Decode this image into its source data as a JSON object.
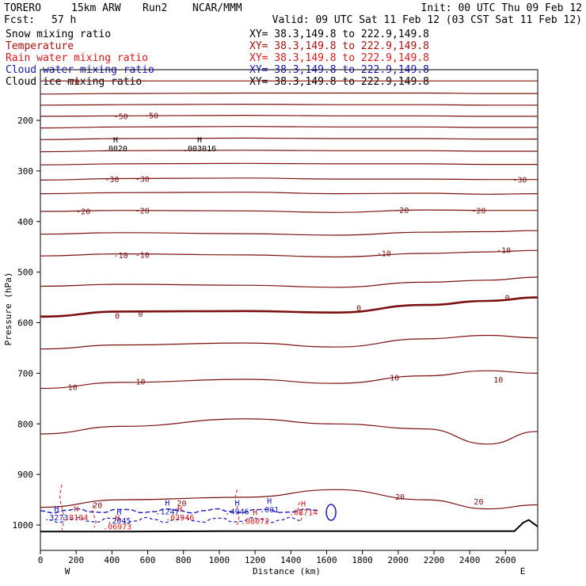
{
  "header": {
    "model": "TORERO",
    "grid": "15km ARW",
    "run": "Run2",
    "org": "NCAR/MMM",
    "init": "Init: 00 UTC Thu 09 Feb 12",
    "fcst": "Fcst:",
    "fcst_hours": "57 h",
    "valid": "Valid: 09 UTC Sat 11 Feb 12 (03 CST Sat 11 Feb 12)"
  },
  "legend": [
    {
      "name": "Snow mixing ratio",
      "color": "#000000",
      "xy": "XY=  38.3,149.8 to 222.9,149.8"
    },
    {
      "name": "Temperature",
      "color": "#b01010",
      "xy": "XY=  38.3,149.8 to 222.9,149.8"
    },
    {
      "name": "Rain water mixing ratio",
      "color": "#e01818",
      "xy": "XY=  38.3,149.8 to 222.9,149.8"
    },
    {
      "name": "Cloud water mixing ratio",
      "color": "#1818c0",
      "xy": "XY=  38.3,149.8 to 222.9,149.8"
    },
    {
      "name": "Cloud ice mixing ratio",
      "color": "#000000",
      "xy": "XY=  38.3,149.8 to 222.9,149.8"
    }
  ],
  "colors": {
    "temperature": "#7a1010",
    "freezing": "#7a1010",
    "rain": "#e01818",
    "cloudwater": "#1818c0",
    "ice": "#000000",
    "terrain": "#000000"
  },
  "chart_data": {
    "type": "cross-section",
    "xlabel": "Distance (km)",
    "ylabel": "Pressure (hPa)",
    "xlim": [
      0,
      2780
    ],
    "ylim": [
      1050,
      100
    ],
    "x_ticks": [
      0,
      200,
      400,
      600,
      800,
      1000,
      1200,
      1400,
      1600,
      1800,
      2000,
      2200,
      2400,
      2600
    ],
    "x_tick_labels": [
      "0",
      "200",
      "400",
      "600",
      "800",
      "1000",
      "1200",
      "1400",
      "1600",
      "1800",
      "2000",
      "2200",
      "2400",
      "2600"
    ],
    "y_ticks": [
      200,
      300,
      400,
      500,
      600,
      700,
      800,
      900,
      1000
    ],
    "y_tick_labels": [
      "200",
      "300",
      "400",
      "500",
      "600",
      "700",
      "800",
      "900",
      "1000"
    ],
    "x_end_labels": {
      "left": "W",
      "right": "E"
    },
    "temperature_isotherms_C": [
      {
        "label": "-70",
        "p": [
          122,
          122,
          122,
          122,
          122,
          122,
          122
        ]
      },
      {
        "label": "",
        "p": [
          148,
          147,
          146,
          146,
          146,
          147,
          147
        ]
      },
      {
        "label": "",
        "p": [
          170,
          169,
          168,
          169,
          169,
          170,
          170
        ]
      },
      {
        "label": "-50",
        "p": [
          192,
          191,
          190,
          191,
          191,
          192,
          192
        ]
      },
      {
        "label": "",
        "p": [
          215,
          213,
          212,
          213,
          213,
          214,
          214
        ]
      },
      {
        "label": "",
        "p": [
          238,
          236,
          235,
          236,
          236,
          237,
          237
        ]
      },
      {
        "label": "",
        "p": [
          262,
          260,
          259,
          260,
          260,
          261,
          261
        ]
      },
      {
        "label": "",
        "p": [
          288,
          286,
          285,
          286,
          286,
          287,
          287
        ]
      },
      {
        "label": "-30",
        "p": [
          318,
          315,
          314,
          316,
          316,
          317,
          317
        ]
      },
      {
        "label": "",
        "p": [
          345,
          343,
          342,
          345,
          344,
          346,
          345
        ]
      },
      {
        "label": "-20",
        "p": [
          380,
          378,
          379,
          382,
          377,
          378,
          378
        ]
      },
      {
        "label": "",
        "p": [
          425,
          422,
          424,
          427,
          421,
          420,
          418
        ]
      },
      {
        "label": "-10",
        "p": [
          468,
          464,
          466,
          470,
          463,
          460,
          457
        ]
      },
      {
        "label": "",
        "p": [
          528,
          524,
          526,
          530,
          520,
          516,
          510
        ]
      },
      {
        "label": "0",
        "p": [
          588,
          578,
          577,
          580,
          565,
          557,
          550
        ]
      },
      {
        "label": "",
        "p": [
          652,
          644,
          640,
          648,
          632,
          625,
          630
        ]
      },
      {
        "label": "10",
        "p": [
          730,
          718,
          712,
          720,
          705,
          695,
          700
        ]
      },
      {
        "label": "",
        "p": [
          820,
          805,
          790,
          800,
          810,
          840,
          815
        ]
      },
      {
        "label": "20",
        "p": [
          965,
          950,
          945,
          930,
          950,
          968,
          960
        ]
      }
    ],
    "isotherm_x_nodes": [
      0,
      450,
      1150,
      1650,
      2150,
      2500,
      2780
    ],
    "contour_labels": [
      {
        "text": "-70",
        "x": 180,
        "p": 123
      },
      {
        "text": "-50",
        "x": 450,
        "p": 191
      },
      {
        "text": "-50",
        "x": 620,
        "p": 190
      },
      {
        "text": "-30",
        "x": 400,
        "p": 316
      },
      {
        "text": "-30",
        "x": 570,
        "p": 315
      },
      {
        "text": "-30",
        "x": 2680,
        "p": 317
      },
      {
        "text": "-20",
        "x": 240,
        "p": 379
      },
      {
        "text": "-20",
        "x": 570,
        "p": 378
      },
      {
        "text": "-20",
        "x": 2020,
        "p": 377
      },
      {
        "text": "-20",
        "x": 2450,
        "p": 378
      },
      {
        "text": "-10",
        "x": 450,
        "p": 466
      },
      {
        "text": "-10",
        "x": 570,
        "p": 465
      },
      {
        "text": "-10",
        "x": 1920,
        "p": 462
      },
      {
        "text": "-10",
        "x": 2590,
        "p": 456
      },
      {
        "text": "0",
        "x": 430,
        "p": 586
      },
      {
        "text": "0",
        "x": 560,
        "p": 582
      },
      {
        "text": "0",
        "x": 1780,
        "p": 570
      },
      {
        "text": "0",
        "x": 2610,
        "p": 550
      },
      {
        "text": "10",
        "x": 180,
        "p": 727
      },
      {
        "text": "10",
        "x": 560,
        "p": 716
      },
      {
        "text": "10",
        "x": 1980,
        "p": 708
      },
      {
        "text": "10",
        "x": 2560,
        "p": 712
      },
      {
        "text": "20",
        "x": 320,
        "p": 960
      },
      {
        "text": "20",
        "x": 790,
        "p": 956
      },
      {
        "text": "20",
        "x": 2010,
        "p": 944
      },
      {
        "text": "20",
        "x": 2450,
        "p": 953
      }
    ],
    "snow_maxima": [
      {
        "text": ".0020",
        "x": 420,
        "p": 256
      },
      {
        "text": ".003016",
        "x": 890,
        "p": 256
      }
    ],
    "cloudwater_maxima": [
      {
        "text": ".1247",
        "x": 710,
        "p": 974
      },
      {
        "text": ".4946",
        "x": 1100,
        "p": 974
      },
      {
        "text": ".001",
        "x": 1280,
        "p": 970
      },
      {
        "text": ".2045",
        "x": 440,
        "p": 992
      },
      {
        "text": ".3273",
        "x": 90,
        "p": 986
      }
    ],
    "rain_maxima": [
      {
        "text": ".8104",
        "x": 200,
        "p": 986
      },
      {
        "text": ".06973",
        "x": 430,
        "p": 1004
      },
      {
        "text": ".03946",
        "x": 780,
        "p": 986
      },
      {
        "text": ".08072",
        "x": 1200,
        "p": 993
      },
      {
        "text": ".08714",
        "x": 1470,
        "p": 976
      }
    ],
    "terrain_p": {
      "x": [
        0,
        500,
        1000,
        1500,
        2000,
        2500,
        2650,
        2700,
        2730,
        2780
      ],
      "p": [
        1013,
        1013,
        1012,
        1012,
        1012,
        1012,
        1012,
        995,
        990,
        1003
      ]
    }
  }
}
